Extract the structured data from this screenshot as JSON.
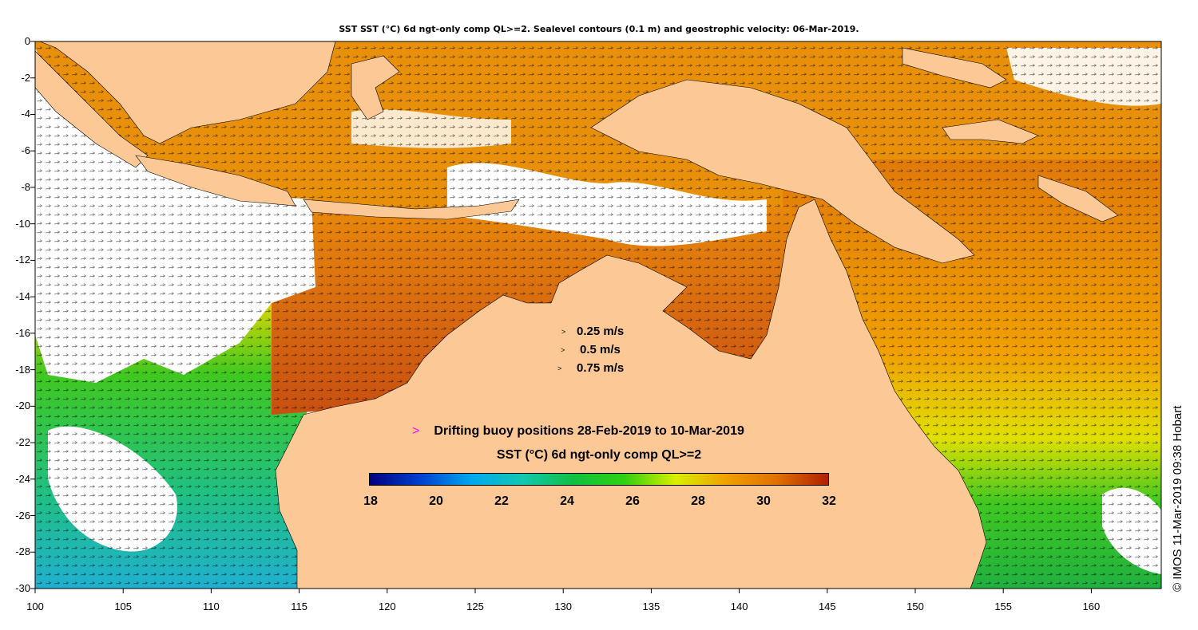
{
  "title": "SST SST (°C) 6d ngt-only comp QL>=2. Sealevel contours (0.1 m) and geostrophic velocity: 06-Mar-2019.",
  "y_axis_labels": [
    "0",
    "-2",
    "-4",
    "-6",
    "-8",
    "-10",
    "-12",
    "-14",
    "-16",
    "-18",
    "-20",
    "-22",
    "-24",
    "-26",
    "-28",
    "-30"
  ],
  "x_axis_labels": [
    "100",
    "105",
    "110",
    "115",
    "120",
    "125",
    "130",
    "135",
    "140",
    "145",
    "150",
    "155",
    "160"
  ],
  "velocity_legend": [
    {
      "arrow": ">",
      "label": "0.25 m/s"
    },
    {
      "arrow": ">",
      "label": "0.5 m/s"
    },
    {
      "arrow": ">",
      "label": "0.75 m/s"
    }
  ],
  "buoy_legend": {
    "marker": ">",
    "label": "Drifting buoy positions 28-Feb-2019 to 10-Mar-2019"
  },
  "colorbar": {
    "title": "SST (°C) 6d ngt-only comp QL>=2",
    "ticks": [
      "18",
      "20",
      "22",
      "24",
      "26",
      "28",
      "30",
      "32"
    ],
    "colors": [
      "#000080",
      "#0040d0",
      "#00a8f0",
      "#10c8b0",
      "#10c040",
      "#30d010",
      "#d8f000",
      "#f0a000",
      "#e07000",
      "#b02000"
    ]
  },
  "credit": "© IMOS 11-Mar-2019 09:38 Hobart",
  "colors": {
    "land": "#fcc996",
    "nodata": "#ffffff",
    "buoy": "#ff00ff"
  }
}
